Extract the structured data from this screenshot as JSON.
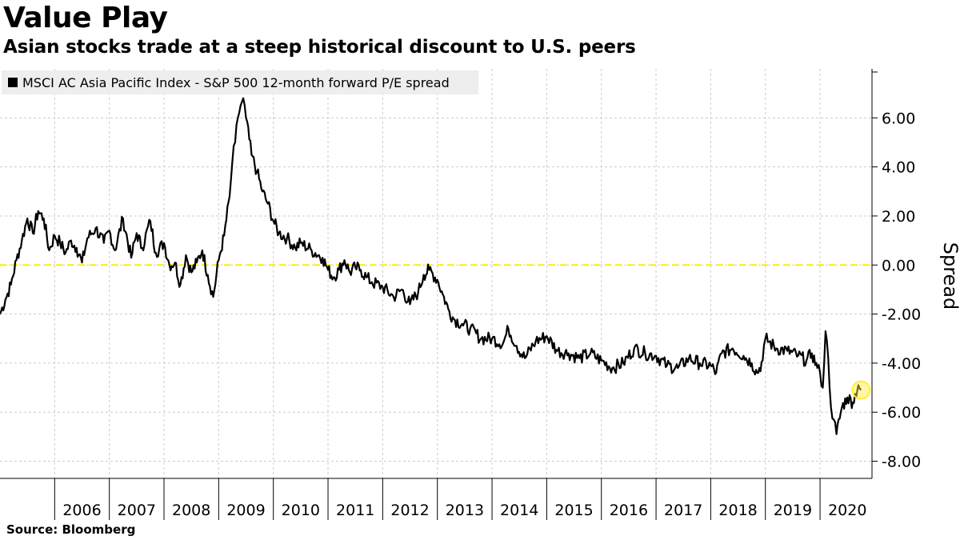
{
  "header": {
    "title": "Value Play",
    "subtitle": "Asian stocks trade at a steep historical discount to U.S. peers"
  },
  "legend": {
    "label": "MSCI AC Asia Pacific Index - S&P 500 12-month forward P/E spread"
  },
  "axis": {
    "ylabel": "Spread"
  },
  "footer": {
    "source": "Source: Bloomberg"
  },
  "colors": {
    "line": "#000000",
    "zero_line": "#ffee00",
    "highlight": "#ffee33",
    "grid": "#cccccc"
  },
  "chart_data": {
    "type": "line",
    "title": "Value Play",
    "subtitle": "Asian stocks trade at a steep historical discount to U.S. peers",
    "ylabel": "Spread",
    "xlabel": "",
    "ylim": [
      -8.7,
      8.0
    ],
    "xlim": [
      2005.0,
      2020.95
    ],
    "y_ticks": [
      6,
      4,
      2,
      0,
      -2,
      -4,
      -6,
      -8
    ],
    "y_tick_labels": [
      "6.00",
      "4.00",
      "2.00",
      "0.00",
      "-2.00",
      "-4.00",
      "-6.00",
      "-8.00"
    ],
    "x_tick_labels": [
      "2006",
      "2007",
      "2008",
      "2009",
      "2010",
      "2011",
      "2012",
      "2013",
      "2014",
      "2015",
      "2016",
      "2017",
      "2018",
      "2019",
      "2020"
    ],
    "reference_line": {
      "y": 0,
      "style": "dashed"
    },
    "grid": true,
    "legend_position": "top-left",
    "highlight_last_point": true,
    "series": [
      {
        "name": "MSCI AC Asia Pacific Index - S&P 500 12-month forward P/E spread",
        "x": [
          2005.0,
          2005.1,
          2005.2,
          2005.3,
          2005.4,
          2005.5,
          2005.6,
          2005.7,
          2005.8,
          2005.9,
          2006.0,
          2006.1,
          2006.2,
          2006.3,
          2006.4,
          2006.5,
          2006.6,
          2006.75,
          2006.9,
          2007.0,
          2007.1,
          2007.25,
          2007.4,
          2007.5,
          2007.6,
          2007.75,
          2007.85,
          2008.0,
          2008.1,
          2008.2,
          2008.3,
          2008.4,
          2008.5,
          2008.6,
          2008.7,
          2008.8,
          2008.9,
          2009.0,
          2009.1,
          2009.2,
          2009.25,
          2009.3,
          2009.35,
          2009.4,
          2009.45,
          2009.5,
          2009.6,
          2009.7,
          2009.8,
          2009.9,
          2010.0,
          2010.1,
          2010.25,
          2010.4,
          2010.5,
          2010.7,
          2010.9,
          2011.0,
          2011.1,
          2011.2,
          2011.3,
          2011.4,
          2011.5,
          2011.6,
          2011.7,
          2011.8,
          2012.0,
          2012.2,
          2012.35,
          2012.5,
          2012.65,
          2012.75,
          2012.85,
          2013.0,
          2013.1,
          2013.2,
          2013.3,
          2013.45,
          2013.6,
          2013.8,
          2014.0,
          2014.2,
          2014.3,
          2014.45,
          2014.6,
          2014.8,
          2015.0,
          2015.2,
          2015.4,
          2015.6,
          2015.8,
          2016.0,
          2016.2,
          2016.4,
          2016.6,
          2016.8,
          2017.0,
          2017.2,
          2017.4,
          2017.6,
          2017.8,
          2018.0,
          2018.1,
          2018.2,
          2018.4,
          2018.6,
          2018.75,
          2018.85,
          2018.95,
          2019.0,
          2019.2,
          2019.4,
          2019.6,
          2019.75,
          2019.85,
          2019.95,
          2020.0,
          2020.05,
          2020.1,
          2020.15,
          2020.2,
          2020.25,
          2020.3,
          2020.4,
          2020.5,
          2020.6,
          2020.7,
          2020.75
        ],
        "values": [
          -2.0,
          -1.4,
          -0.8,
          0.2,
          1.0,
          1.9,
          1.3,
          2.2,
          1.9,
          0.6,
          1.2,
          0.9,
          0.5,
          1.0,
          0.7,
          0.1,
          1.1,
          1.5,
          0.9,
          1.4,
          0.6,
          1.9,
          0.3,
          1.3,
          0.7,
          1.8,
          0.5,
          0.9,
          0.0,
          0.1,
          -0.8,
          0.4,
          -0.3,
          0.1,
          0.6,
          -0.4,
          -1.3,
          0.2,
          1.2,
          2.8,
          4.2,
          5.0,
          6.0,
          6.5,
          6.8,
          6.0,
          4.5,
          3.8,
          3.0,
          2.5,
          1.8,
          1.3,
          1.1,
          0.7,
          0.9,
          0.6,
          0.3,
          -0.2,
          -0.5,
          -0.2,
          0.2,
          -0.3,
          -0.1,
          -0.2,
          -0.5,
          -0.7,
          -0.9,
          -1.3,
          -1.0,
          -1.6,
          -1.1,
          -0.4,
          -0.2,
          -0.6,
          -1.2,
          -1.8,
          -2.2,
          -2.4,
          -2.6,
          -3.0,
          -3.0,
          -3.2,
          -2.6,
          -3.3,
          -3.8,
          -3.1,
          -2.9,
          -3.5,
          -3.6,
          -3.8,
          -3.6,
          -3.9,
          -4.2,
          -4.0,
          -3.4,
          -3.6,
          -3.7,
          -4.1,
          -4.2,
          -3.8,
          -4.0,
          -4.1,
          -4.4,
          -3.6,
          -3.4,
          -3.7,
          -4.0,
          -4.4,
          -3.9,
          -3.0,
          -3.4,
          -3.5,
          -3.7,
          -3.9,
          -3.6,
          -4.2,
          -4.4,
          -5.0,
          -2.7,
          -3.8,
          -5.8,
          -6.3,
          -6.9,
          -5.8,
          -5.4,
          -5.6,
          -4.9,
          -5.1
        ]
      }
    ]
  }
}
